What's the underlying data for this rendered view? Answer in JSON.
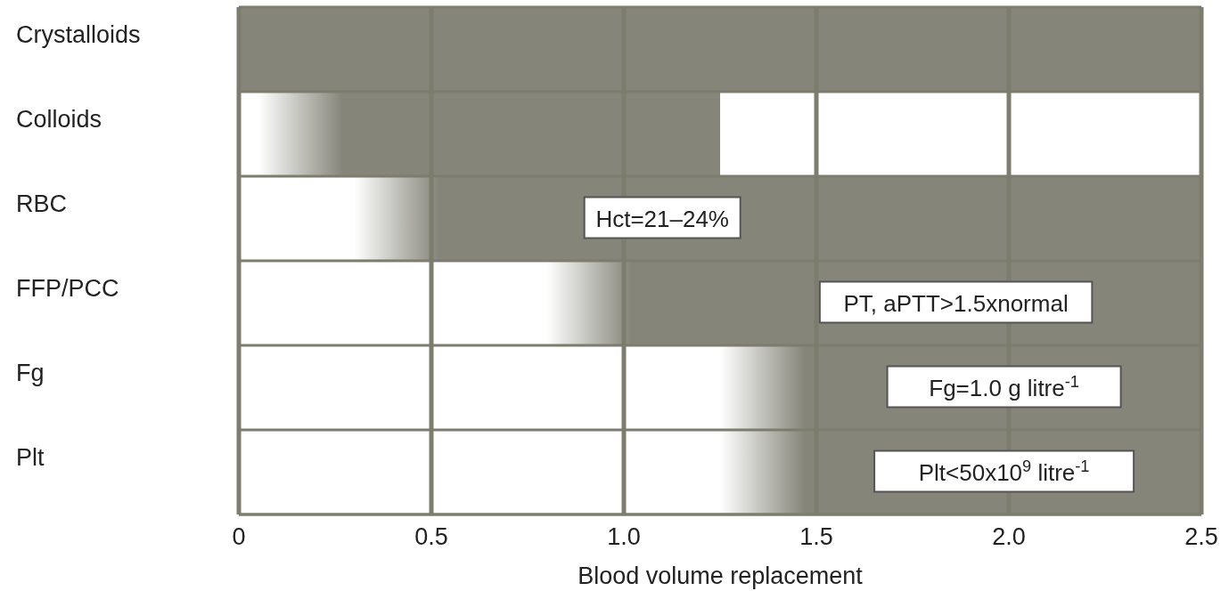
{
  "chart_data": {
    "type": "bar",
    "orientation": "horizontal",
    "xlabel": "Blood volume replacement",
    "categories": [
      "Crystalloids",
      "Colloids",
      "RBC",
      "FFP/PCC",
      "Fg",
      "Plt"
    ],
    "values": [
      2.5,
      1.2,
      2.2,
      1.7,
      1.25,
      1.25
    ],
    "base": [
      0,
      0.05,
      0.3,
      0.8,
      1.25,
      1.25
    ],
    "color": "#85857a",
    "xlim": [
      0,
      2.5
    ],
    "xticks": [
      0,
      0.5,
      {
        "value": 1,
        "label": "1.0"
      },
      1.5,
      {
        "value": 2,
        "label": "2.0"
      },
      2.5
    ],
    "grid": true,
    "annotations": [
      "Hct=21–24%",
      "PT, aPTT>1.5xnormal",
      "Fg=1.0 g litre$^{-1}$",
      "Plt<50x10$^{9}$ litre$^{-1}$"
    ]
  }
}
